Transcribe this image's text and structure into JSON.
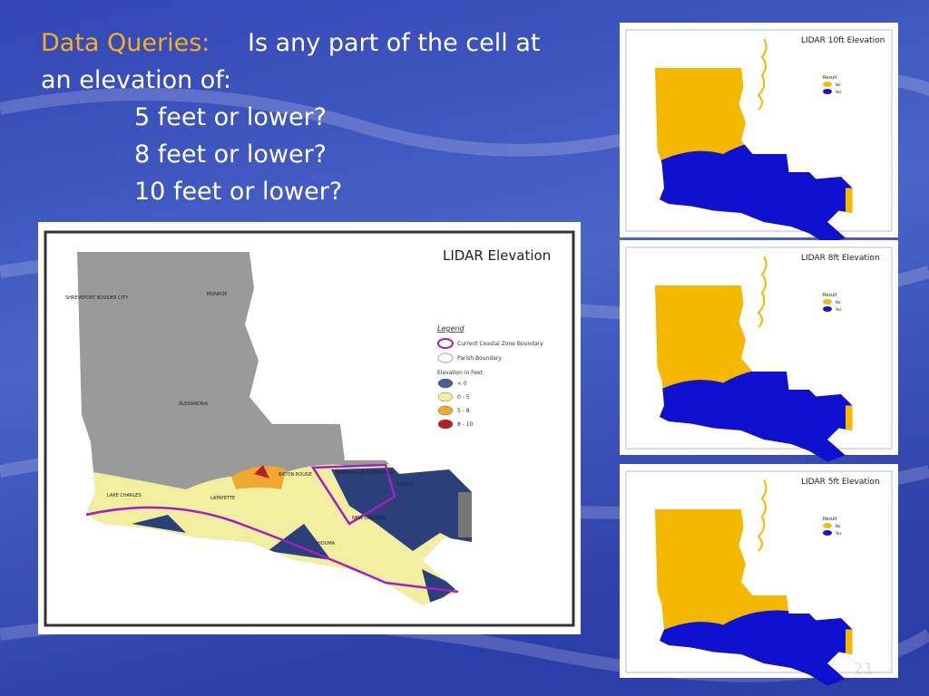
{
  "slide": {
    "title_highlight": "Data Queries:",
    "title_rest": "Is any part of the cell at",
    "title_line2": "an elevation of:",
    "questions": [
      "5 feet or lower?",
      "8 feet or lower?",
      "10 feet or lower?"
    ],
    "page_number": "21"
  },
  "main_map": {
    "title": "LIDAR Elevation",
    "legend_title": "Legend",
    "boundaries": [
      "Current Coastal Zone Boundary",
      "Parish Boundary"
    ],
    "elevation_title": "Elevation in Feet",
    "elevation_classes": [
      "< 0",
      "0 - 5",
      "5 - 8",
      "8 - 10"
    ],
    "cities": [
      "SHREVEPORT  BOSSIER CITY",
      "MONROE",
      "ALEXANDRIA",
      "LAKE CHARLES",
      "LAFAYETTE",
      "BATON ROUGE",
      "MANDEVILLE  COVINGTON",
      "SLIDELL",
      "NEW ORLEANS",
      "HOUMA"
    ]
  },
  "result_maps": [
    {
      "title": "LIDAR 10ft Elevation",
      "legend_title": "Result",
      "classes": [
        "No",
        "Yes"
      ]
    },
    {
      "title": "LIDAR 8ft Elevation",
      "legend_title": "Result",
      "classes": [
        "No",
        "Yes"
      ]
    },
    {
      "title": "LIDAR 5ft Elevation",
      "legend_title": "Result",
      "classes": [
        "No",
        "Yes"
      ]
    }
  ]
}
